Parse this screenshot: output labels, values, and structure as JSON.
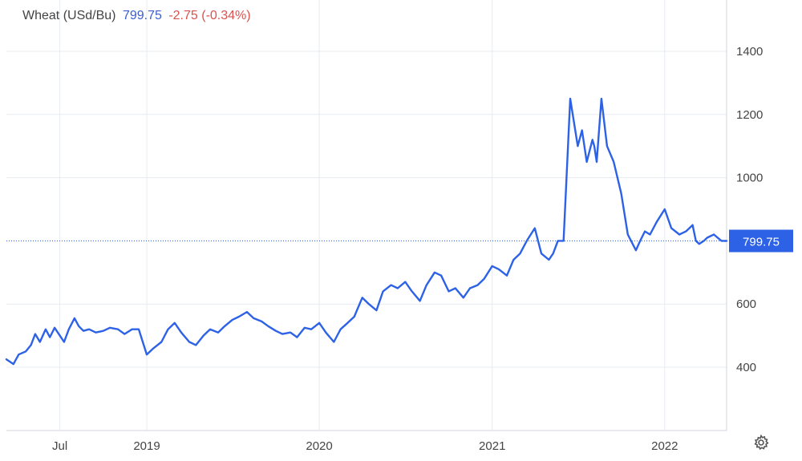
{
  "header": {
    "title": "Wheat (USd/Bu)",
    "last": "799.75",
    "change": "-2.75 (-0.34%)"
  },
  "price_tag": "799.75",
  "colors": {
    "line": "#2e62e6",
    "grid": "#e6ecf1",
    "axis_text": "#444444",
    "tag_bg": "#2e62e6",
    "change": "#d9534f",
    "last": "#3a5fcd"
  },
  "icons": {
    "settings": "gear-icon"
  },
  "chart_data": {
    "type": "line",
    "title": "Wheat (USd/Bu)",
    "xlabel": "",
    "ylabel": "",
    "grid": true,
    "y_axis_position": "right",
    "ylim": [
      200,
      1500
    ],
    "xlim": [
      "2018-03-10",
      "2022-05-12"
    ],
    "y_ticks": [
      400,
      600,
      1000,
      1200,
      1400
    ],
    "x_ticks": [
      {
        "label": "Jul",
        "x": "2018-07-01"
      },
      {
        "label": "2019",
        "x": "2019-01-01"
      },
      {
        "label": "2020",
        "x": "2020-01-01"
      },
      {
        "label": "2021",
        "x": "2021-01-01"
      },
      {
        "label": "2022",
        "x": "2022-01-01"
      }
    ],
    "last_value": 799.75,
    "series": [
      {
        "x": [
          "2018-03-10",
          "2018-03-25",
          "2018-04-05",
          "2018-04-20",
          "2018-05-01",
          "2018-05-10",
          "2018-05-20",
          "2018-06-01",
          "2018-06-10",
          "2018-06-20",
          "2018-07-01",
          "2018-07-10",
          "2018-07-20",
          "2018-08-01",
          "2018-08-10",
          "2018-08-20",
          "2018-09-01",
          "2018-09-15",
          "2018-10-01",
          "2018-10-15",
          "2018-11-01",
          "2018-11-15",
          "2018-12-01",
          "2018-12-15",
          "2019-01-01",
          "2019-01-15",
          "2019-02-01",
          "2019-02-15",
          "2019-03-01",
          "2019-03-15",
          "2019-04-01",
          "2019-04-15",
          "2019-05-01",
          "2019-05-15",
          "2019-06-01",
          "2019-06-15",
          "2019-07-01",
          "2019-07-15",
          "2019-08-01",
          "2019-08-15",
          "2019-09-01",
          "2019-09-15",
          "2019-10-01",
          "2019-10-15",
          "2019-11-01",
          "2019-11-15",
          "2019-12-01",
          "2019-12-15",
          "2020-01-01",
          "2020-01-15",
          "2020-02-01",
          "2020-02-15",
          "2020-03-01",
          "2020-03-15",
          "2020-04-01",
          "2020-04-15",
          "2020-05-01",
          "2020-05-15",
          "2020-06-01",
          "2020-06-15",
          "2020-07-01",
          "2020-07-15",
          "2020-08-01",
          "2020-08-15",
          "2020-09-01",
          "2020-09-15",
          "2020-10-01",
          "2020-10-15",
          "2020-11-01",
          "2020-11-15",
          "2020-12-01",
          "2020-12-15",
          "2021-01-01",
          "2021-01-15",
          "2021-02-01",
          "2021-02-15",
          "2021-03-01",
          "2021-03-15",
          "2021-04-01",
          "2021-04-15",
          "2021-05-01",
          "2021-05-10",
          "2021-05-20",
          "2021-06-01",
          "2021-06-15",
          "2021-07-01",
          "2021-07-10",
          "2021-07-20",
          "2021-08-01",
          "2021-08-05",
          "2021-08-10",
          "2021-08-20",
          "2021-09-01",
          "2021-09-15",
          "2021-10-01",
          "2021-10-15",
          "2021-11-01",
          "2021-11-10",
          "2021-11-20",
          "2021-12-01",
          "2021-12-15",
          "2022-01-01",
          "2022-01-15",
          "2022-02-01",
          "2022-02-15",
          "2022-03-01",
          "2022-03-08",
          "2022-03-15",
          "2022-03-25",
          "2022-04-01",
          "2022-04-15",
          "2022-05-01",
          "2022-05-12"
        ],
        "y": [
          425,
          410,
          440,
          450,
          470,
          505,
          480,
          520,
          495,
          525,
          500,
          480,
          520,
          555,
          530,
          515,
          520,
          510,
          515,
          525,
          520,
          505,
          520,
          520,
          440,
          460,
          480,
          520,
          540,
          510,
          480,
          470,
          500,
          520,
          510,
          530,
          550,
          560,
          575,
          555,
          545,
          530,
          515,
          505,
          510,
          495,
          525,
          520,
          540,
          510,
          480,
          520,
          540,
          560,
          620,
          600,
          580,
          640,
          660,
          650,
          670,
          640,
          610,
          660,
          700,
          690,
          640,
          650,
          620,
          650,
          660,
          680,
          720,
          710,
          690,
          740,
          760,
          800,
          840,
          760,
          740,
          760,
          800,
          800,
          1250,
          1100,
          1150,
          1050,
          1120,
          1100,
          1050,
          1250,
          1100,
          1050,
          950,
          820,
          770,
          800,
          830,
          820,
          860,
          900,
          840,
          820,
          830,
          850,
          800,
          790,
          800,
          810,
          820,
          800,
          799.75
        ]
      }
    ]
  }
}
